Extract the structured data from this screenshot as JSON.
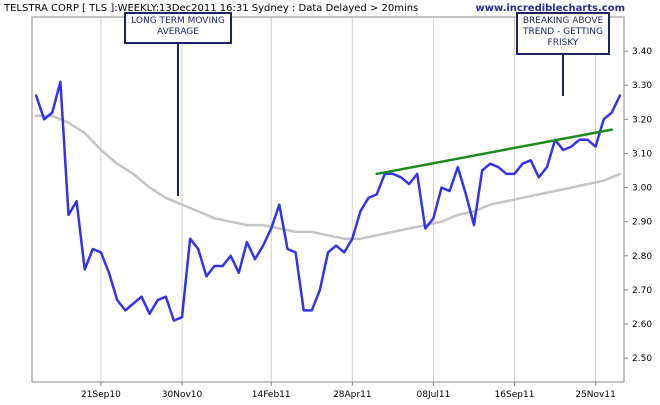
{
  "header": {
    "title": "TELSTRA CORP [ TLS ]:WEEKLY:13Dec2011 16:31 Sydney : Data Delayed > 20mins",
    "watermark": "www.incrediblecharts.com"
  },
  "annotations": [
    {
      "lines": [
        "LONG TERM MOVING",
        "AVERAGE"
      ]
    },
    {
      "lines": [
        "BREAKING ABOVE",
        "TREND - GETTING",
        "FRISKY"
      ]
    }
  ],
  "colors": {
    "price": "#3333ee",
    "moving_average": "#c4c4c4",
    "trendline": "#1a8a1a",
    "callout": "#1c2466",
    "axis": "#888888",
    "grid": "#d0d0d0",
    "watermark": "#2a2aa0"
  },
  "chart_data": {
    "type": "line",
    "x_unit": "week index (weekly bars)",
    "x_tick_labels": [
      {
        "week": 8,
        "label": "21Sep10"
      },
      {
        "week": 18,
        "label": "30Nov10"
      },
      {
        "week": 29,
        "label": "14Feb11"
      },
      {
        "week": 39,
        "label": "28Apr11"
      },
      {
        "week": 49,
        "label": "08Jul11"
      },
      {
        "week": 59,
        "label": "16Sep11"
      },
      {
        "week": 69,
        "label": "25Nov11"
      }
    ],
    "y_ticks": [
      2.5,
      2.6,
      2.7,
      2.8,
      2.9,
      3.0,
      3.1,
      3.2,
      3.3,
      3.4
    ],
    "ylim": [
      2.43,
      3.5
    ],
    "xlim": [
      -0.5,
      72.5
    ],
    "grid": "vertical",
    "y_axis_side": "right",
    "series": [
      {
        "kind": "price",
        "x": [
          0,
          1,
          2,
          3,
          4,
          5,
          6,
          7,
          8,
          9,
          10,
          11,
          12,
          13,
          14,
          15,
          16,
          17,
          18,
          19,
          20,
          21,
          22,
          23,
          24,
          25,
          26,
          27,
          28,
          29,
          30,
          31,
          32,
          33,
          34,
          35,
          36,
          37,
          38,
          39,
          40,
          41,
          42,
          43,
          44,
          45,
          46,
          47,
          48,
          49,
          50,
          51,
          52,
          53,
          54,
          55,
          56,
          57,
          58,
          59,
          60,
          61,
          62,
          63,
          64,
          65,
          66,
          67,
          68,
          69,
          70,
          71,
          72
        ],
        "values": [
          3.27,
          3.2,
          3.22,
          3.31,
          2.92,
          2.96,
          2.76,
          2.82,
          2.81,
          2.75,
          2.67,
          2.64,
          2.66,
          2.68,
          2.63,
          2.67,
          2.68,
          2.61,
          2.62,
          2.85,
          2.82,
          2.74,
          2.77,
          2.77,
          2.8,
          2.75,
          2.84,
          2.79,
          2.83,
          2.88,
          2.95,
          2.82,
          2.81,
          2.64,
          2.64,
          2.7,
          2.81,
          2.83,
          2.81,
          2.85,
          2.93,
          2.97,
          2.98,
          3.04,
          3.04,
          3.03,
          3.01,
          3.04,
          2.88,
          2.91,
          3.0,
          2.99,
          3.06,
          2.98,
          2.89,
          3.05,
          3.07,
          3.06,
          3.04,
          3.04,
          3.07,
          3.08,
          3.03,
          3.06,
          3.14,
          3.11,
          3.12,
          3.14,
          3.14,
          3.12,
          3.2,
          3.22,
          3.27
        ]
      },
      {
        "kind": "moving_average",
        "x": [
          0,
          2,
          4,
          6,
          8,
          10,
          12,
          14,
          16,
          18,
          20,
          22,
          24,
          26,
          28,
          30,
          32,
          34,
          36,
          38,
          40,
          42,
          44,
          46,
          48,
          50,
          52,
          54,
          56,
          58,
          60,
          62,
          64,
          66,
          68,
          70,
          72
        ],
        "values": [
          3.21,
          3.21,
          3.19,
          3.16,
          3.11,
          3.07,
          3.04,
          3.0,
          2.97,
          2.95,
          2.93,
          2.91,
          2.9,
          2.89,
          2.89,
          2.88,
          2.87,
          2.87,
          2.86,
          2.85,
          2.85,
          2.86,
          2.87,
          2.88,
          2.89,
          2.9,
          2.92,
          2.93,
          2.95,
          2.96,
          2.97,
          2.98,
          2.99,
          3.0,
          3.01,
          3.02,
          3.04
        ]
      },
      {
        "kind": "trendline",
        "x": [
          42,
          71
        ],
        "values": [
          3.04,
          3.17
        ]
      }
    ]
  }
}
